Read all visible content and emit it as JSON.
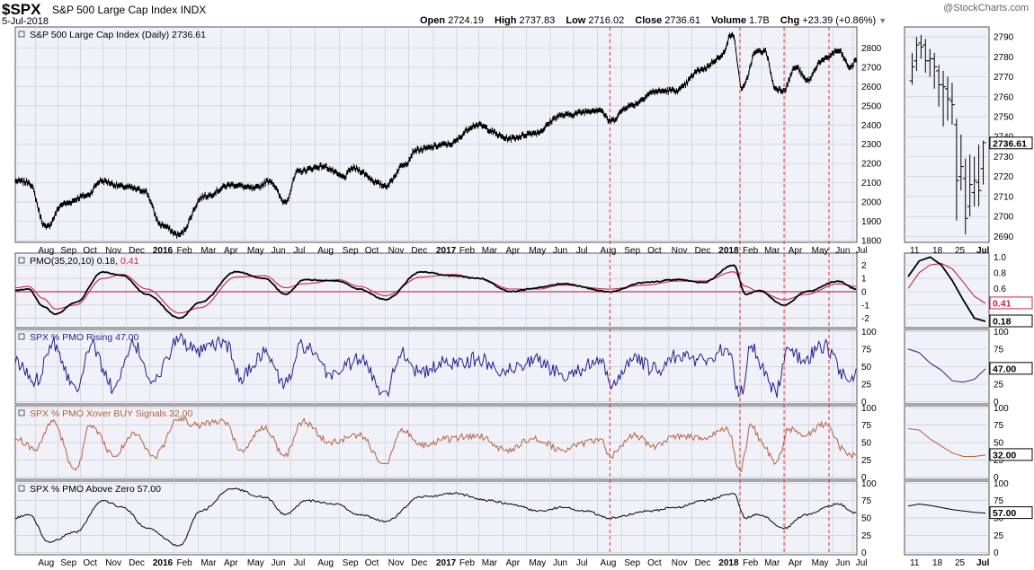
{
  "header": {
    "symbol": "$SPX",
    "name": "S&P 500 Large Cap Index",
    "exchange": "INDX",
    "date": "5-Jul-2018",
    "brand": "@StockCharts.com",
    "quote": [
      {
        "label": "Open",
        "value": "2724.19"
      },
      {
        "label": "High",
        "value": "2737.83"
      },
      {
        "label": "Low",
        "value": "2716.02"
      },
      {
        "label": "Close",
        "value": "2736.61"
      },
      {
        "label": "Volume",
        "value": "1.7B"
      },
      {
        "label": "Chg",
        "value": "+23.39 (+0.86%)"
      }
    ]
  },
  "colors": {
    "price": "#000000",
    "pmo": "#000000",
    "signal": "#cc2244",
    "blue": "#1f1f8f",
    "brown": "#b5603a",
    "grid": "#c9cbd6",
    "bg": "#f1f1f9",
    "vline": "#e03030"
  },
  "chart_data": [
    {
      "type": "line",
      "title": "S&P 500 Large Cap Index (Daily) 2736.61",
      "ylim": [
        1790,
        2910
      ],
      "yticks": [
        1800,
        1900,
        2000,
        2100,
        2200,
        2300,
        2400,
        2500,
        2600,
        2700,
        2800
      ],
      "x": [
        "2015-07-15",
        "2015-08-01",
        "2015-08-24",
        "2015-09-15",
        "2015-10-15",
        "2015-11-03",
        "2015-12-01",
        "2015-12-28",
        "2016-01-20",
        "2016-02-11",
        "2016-03-15",
        "2016-04-20",
        "2016-05-19",
        "2016-06-08",
        "2016-06-27",
        "2016-07-15",
        "2016-08-15",
        "2016-09-12",
        "2016-09-22",
        "2016-11-04",
        "2016-11-30",
        "2016-12-13",
        "2017-01-25",
        "2017-03-01",
        "2017-04-13",
        "2017-05-17",
        "2017-06-19",
        "2017-08-08",
        "2017-08-21",
        "2017-09-15",
        "2017-10-20",
        "2017-11-15",
        "2017-12-18",
        "2018-01-10",
        "2018-01-26",
        "2018-02-08",
        "2018-02-26",
        "2018-03-09",
        "2018-03-23",
        "2018-04-02",
        "2018-04-18",
        "2018-05-03",
        "2018-05-21",
        "2018-06-12",
        "2018-06-28",
        "2018-07-05"
      ],
      "values": [
        2108,
        2103,
        1868,
        1990,
        2033,
        2110,
        2080,
        2060,
        1880,
        1829,
        2030,
        2090,
        2070,
        2110,
        2000,
        2160,
        2185,
        2130,
        2175,
        2085,
        2200,
        2270,
        2300,
        2400,
        2330,
        2360,
        2450,
        2480,
        2420,
        2500,
        2575,
        2580,
        2690,
        2750,
        2872,
        2590,
        2780,
        2785,
        2590,
        2581,
        2700,
        2630,
        2733,
        2785,
        2699,
        2737
      ]
    },
    {
      "type": "line",
      "title": "PMO(35,20,10) 0.18, 0.41",
      "ylim": [
        -2.7,
        2.9
      ],
      "yticks": [
        -2,
        -1,
        0,
        1,
        2
      ],
      "x": [
        "2015-07-15",
        "2015-08-01",
        "2015-08-20",
        "2015-09-05",
        "2015-10-01",
        "2015-11-05",
        "2015-12-01",
        "2016-01-01",
        "2016-02-12",
        "2016-03-10",
        "2016-04-25",
        "2016-06-01",
        "2016-06-28",
        "2016-07-22",
        "2016-09-05",
        "2016-10-01",
        "2016-11-04",
        "2016-12-20",
        "2017-01-30",
        "2017-03-05",
        "2017-04-15",
        "2017-05-20",
        "2017-06-20",
        "2017-08-21",
        "2017-10-05",
        "2017-11-15",
        "2017-12-20",
        "2018-01-28",
        "2018-02-12",
        "2018-03-01",
        "2018-04-03",
        "2018-05-01",
        "2018-06-12",
        "2018-07-05"
      ],
      "values": [
        0.1,
        0.2,
        -1.1,
        -1.7,
        -0.8,
        1.5,
        1.2,
        -0.2,
        -2.0,
        -0.8,
        1.5,
        1.0,
        -0.2,
        0.9,
        0.8,
        0.2,
        -0.6,
        1.5,
        1.2,
        1.0,
        0.0,
        0.3,
        0.6,
        0.0,
        0.7,
        0.9,
        0.7,
        2.0,
        -0.2,
        0.1,
        -1.0,
        0.0,
        0.8,
        0.2
      ],
      "signal": [
        0.3,
        0.4,
        -0.5,
        -1.3,
        -1.0,
        1.0,
        1.3,
        0.2,
        -1.6,
        -1.2,
        1.1,
        1.2,
        0.3,
        0.6,
        0.9,
        0.4,
        -0.3,
        1.1,
        1.3,
        1.0,
        0.2,
        0.2,
        0.5,
        0.2,
        0.5,
        0.8,
        0.8,
        1.5,
        0.4,
        0.0,
        -0.6,
        -0.2,
        0.6,
        0.4
      ]
    },
    {
      "type": "line",
      "title": "SPX % PMO Rising 47.00",
      "ylim": [
        -3,
        103
      ],
      "yticks": [
        0,
        25,
        50,
        75,
        100
      ],
      "x": [
        "2015-07-15",
        "2015-08-10",
        "2015-09-01",
        "2015-10-01",
        "2015-10-20",
        "2015-11-20",
        "2015-12-15",
        "2016-01-10",
        "2016-02-12",
        "2016-03-05",
        "2016-04-10",
        "2016-05-01",
        "2016-06-01",
        "2016-06-27",
        "2016-07-20",
        "2016-08-25",
        "2016-10-01",
        "2016-11-04",
        "2016-11-25",
        "2016-12-20",
        "2017-01-20",
        "2017-03-01",
        "2017-04-10",
        "2017-05-15",
        "2017-06-20",
        "2017-08-10",
        "2017-08-21",
        "2017-09-20",
        "2017-10-20",
        "2017-11-15",
        "2017-12-20",
        "2018-01-20",
        "2018-02-05",
        "2018-02-20",
        "2018-03-05",
        "2018-03-23",
        "2018-04-10",
        "2018-04-28",
        "2018-05-25",
        "2018-06-20",
        "2018-06-28",
        "2018-07-05"
      ],
      "values": [
        55,
        30,
        85,
        20,
        80,
        20,
        80,
        30,
        90,
        70,
        85,
        35,
        70,
        25,
        80,
        40,
        60,
        15,
        70,
        40,
        55,
        60,
        45,
        60,
        40,
        55,
        25,
        60,
        45,
        65,
        60,
        75,
        10,
        80,
        50,
        15,
        75,
        60,
        80,
        40,
        30,
        47
      ]
    },
    {
      "type": "line",
      "title": "SPX % PMO Xover BUY Signals 32.00",
      "ylim": [
        -3,
        103
      ],
      "yticks": [
        0,
        25,
        50,
        75,
        100
      ],
      "x": [
        "2015-07-15",
        "2015-08-10",
        "2015-09-01",
        "2015-10-01",
        "2015-10-20",
        "2015-11-20",
        "2015-12-15",
        "2016-01-10",
        "2016-02-12",
        "2016-03-05",
        "2016-04-10",
        "2016-05-01",
        "2016-06-01",
        "2016-06-27",
        "2016-07-20",
        "2016-08-25",
        "2016-10-01",
        "2016-11-04",
        "2016-11-25",
        "2016-12-20",
        "2017-01-20",
        "2017-03-01",
        "2017-04-10",
        "2017-05-15",
        "2017-06-20",
        "2017-08-10",
        "2017-08-21",
        "2017-09-20",
        "2017-10-20",
        "2017-11-15",
        "2017-12-20",
        "2018-01-20",
        "2018-02-05",
        "2018-02-20",
        "2018-03-05",
        "2018-03-23",
        "2018-04-10",
        "2018-04-28",
        "2018-05-25",
        "2018-06-20",
        "2018-06-28",
        "2018-07-05"
      ],
      "values": [
        55,
        40,
        80,
        10,
        75,
        30,
        65,
        30,
        85,
        75,
        80,
        40,
        70,
        30,
        80,
        50,
        60,
        20,
        70,
        45,
        55,
        60,
        40,
        55,
        40,
        55,
        30,
        60,
        45,
        60,
        55,
        70,
        10,
        75,
        50,
        20,
        70,
        60,
        75,
        40,
        32,
        32
      ]
    },
    {
      "type": "line",
      "title": "SPX % PMO Above Zero 57.00",
      "ylim": [
        -3,
        103
      ],
      "yticks": [
        0,
        25,
        50,
        75,
        100
      ],
      "x": [
        "2015-07-15",
        "2015-08-01",
        "2015-08-28",
        "2015-10-01",
        "2015-11-05",
        "2015-12-01",
        "2016-01-01",
        "2016-02-12",
        "2016-03-10",
        "2016-04-20",
        "2016-06-01",
        "2016-06-28",
        "2016-07-25",
        "2016-09-01",
        "2016-10-01",
        "2016-11-04",
        "2016-12-20",
        "2017-02-01",
        "2017-03-20",
        "2017-04-15",
        "2017-05-20",
        "2017-06-20",
        "2017-07-20",
        "2017-08-21",
        "2017-10-10",
        "2017-11-15",
        "2017-12-20",
        "2018-01-28",
        "2018-02-12",
        "2018-03-01",
        "2018-04-03",
        "2018-05-01",
        "2018-06-12",
        "2018-07-05"
      ],
      "values": [
        50,
        55,
        15,
        30,
        75,
        65,
        35,
        10,
        60,
        92,
        80,
        55,
        75,
        70,
        55,
        45,
        80,
        85,
        75,
        70,
        60,
        65,
        60,
        50,
        60,
        65,
        75,
        85,
        50,
        55,
        35,
        55,
        70,
        57
      ]
    }
  ],
  "x_axis": {
    "labels": [
      "Aug",
      "Sep",
      "Oct",
      "Nov",
      "Dec",
      "2016",
      "Feb",
      "Mar",
      "Apr",
      "May",
      "Jun",
      "Jul",
      "Aug",
      "Sep",
      "Oct",
      "Nov",
      "Dec",
      "2017",
      "Feb",
      "Mar",
      "Apr",
      "May",
      "Jun",
      "Jul",
      "Aug",
      "Sep",
      "Oct",
      "Nov",
      "Dec",
      "2018",
      "Feb",
      "Mar",
      "Apr",
      "May",
      "Jun",
      "Jul"
    ],
    "dates": [
      "2015-08-10",
      "2015-09-08",
      "2015-10-07",
      "2015-11-05",
      "2015-12-05",
      "2016-01-05",
      "2016-02-05",
      "2016-03-07",
      "2016-04-06",
      "2016-05-06",
      "2016-06-06",
      "2016-07-05",
      "2016-08-05",
      "2016-09-06",
      "2016-10-05",
      "2016-11-04",
      "2016-12-04",
      "2017-01-05",
      "2017-02-04",
      "2017-03-05",
      "2017-04-05",
      "2017-05-05",
      "2017-06-05",
      "2017-07-05",
      "2017-08-05",
      "2017-09-05",
      "2017-10-05",
      "2017-11-05",
      "2017-12-05",
      "2018-01-05",
      "2018-02-05",
      "2018-03-05",
      "2018-04-05",
      "2018-05-05",
      "2018-06-05",
      "2018-07-01"
    ],
    "markers": [
      "2017-08-21",
      "2018-02-05",
      "2018-04-03",
      "2018-05-31"
    ]
  },
  "zoom": {
    "labels": [
      "11",
      "18",
      "25",
      "Jul"
    ],
    "candles": [
      {
        "o": 2768,
        "h": 2782,
        "l": 2766,
        "c": 2775
      },
      {
        "o": 2778,
        "h": 2790,
        "l": 2773,
        "c": 2786
      },
      {
        "o": 2787,
        "h": 2791,
        "l": 2779,
        "c": 2785
      },
      {
        "o": 2786,
        "h": 2789,
        "l": 2772,
        "c": 2778
      },
      {
        "o": 2778,
        "h": 2784,
        "l": 2770,
        "c": 2779
      },
      {
        "o": 2779,
        "h": 2782,
        "l": 2764,
        "c": 2775
      },
      {
        "o": 2773,
        "h": 2776,
        "l": 2755,
        "c": 2766
      },
      {
        "o": 2766,
        "h": 2773,
        "l": 2745,
        "c": 2765
      },
      {
        "o": 2764,
        "h": 2770,
        "l": 2748,
        "c": 2759
      },
      {
        "o": 2758,
        "h": 2767,
        "l": 2746,
        "c": 2756
      },
      {
        "o": 2746,
        "h": 2749,
        "l": 2698,
        "c": 2718
      },
      {
        "o": 2720,
        "h": 2741,
        "l": 2713,
        "c": 2725
      },
      {
        "o": 2719,
        "h": 2729,
        "l": 2691,
        "c": 2699
      },
      {
        "o": 2705,
        "h": 2731,
        "l": 2700,
        "c": 2716
      },
      {
        "o": 2712,
        "h": 2730,
        "l": 2705,
        "c": 2718
      },
      {
        "o": 2717,
        "h": 2736,
        "l": 2705,
        "c": 2713
      },
      {
        "o": 2724,
        "h": 2738,
        "l": 2716,
        "c": 2737
      }
    ],
    "price_ylim": [
      2687,
      2795
    ],
    "price_ticks": [
      2690,
      2700,
      2710,
      2720,
      2730,
      2740,
      2750,
      2760,
      2770,
      2780,
      2790
    ],
    "pmo": [
      0.75,
      0.95,
      1.0,
      0.9,
      0.7,
      0.45,
      0.22,
      0.18
    ],
    "pmo_signal": [
      0.6,
      0.8,
      0.9,
      0.92,
      0.85,
      0.68,
      0.5,
      0.41
    ],
    "rising": [
      75,
      70,
      55,
      45,
      30,
      28,
      32,
      47
    ],
    "xover": [
      70,
      68,
      55,
      45,
      35,
      30,
      30,
      32
    ],
    "above": [
      67,
      70,
      68,
      65,
      62,
      60,
      58,
      57
    ]
  },
  "last_values": {
    "price": "2736.61",
    "pmo": "0.18",
    "pmo_signal": "0.41",
    "rising": "47.00",
    "xover": "32.00",
    "above": "57.00"
  }
}
